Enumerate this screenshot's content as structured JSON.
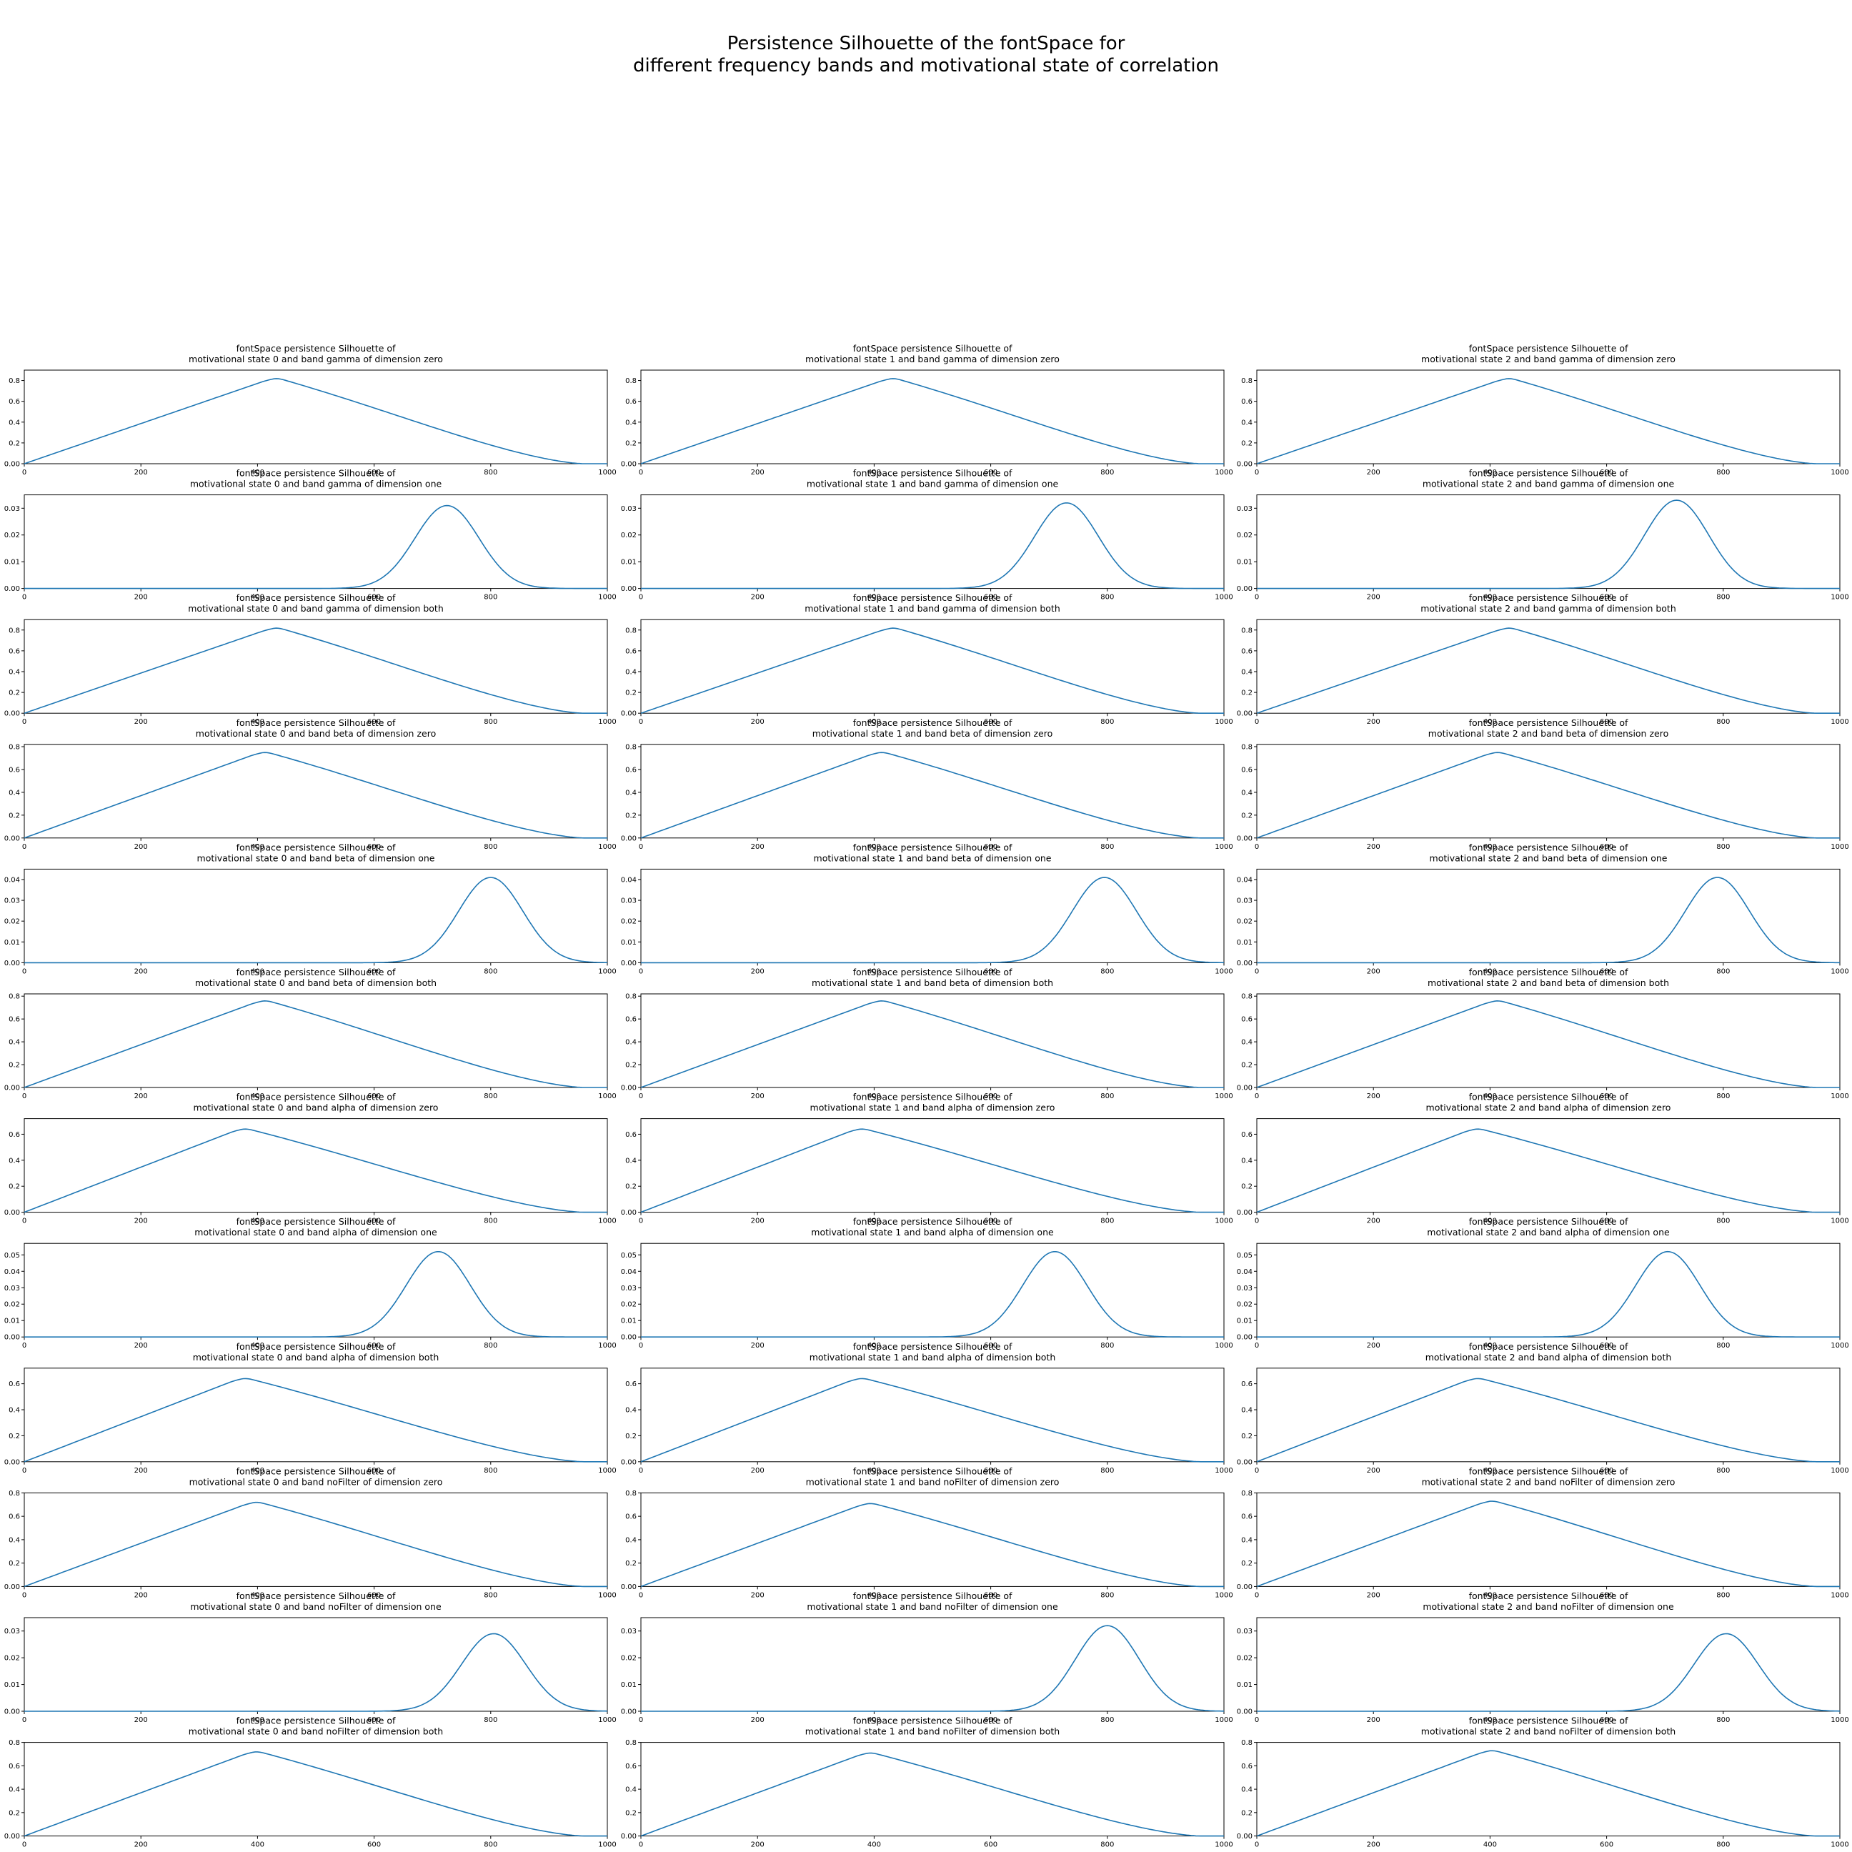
{
  "figure": {
    "suptitle": "Persistence Silhouette of the fontSpace for\ndifferent frequency bands and motivational state of correlation",
    "line_color": "#1f77b4"
  },
  "chart_data": [
    {
      "type": "line",
      "title": "fontSpace persistence Silhouette of\nmotivational state 0 and band gamma of dimension zero",
      "xlim": [
        0,
        1000
      ],
      "ylim": [
        0,
        0.9
      ],
      "xticks": [
        0,
        200,
        400,
        600,
        800,
        1000
      ],
      "yticks": [
        0.0,
        0.2,
        0.4,
        0.6,
        0.8
      ],
      "peak_x": 430,
      "peak_y": 0.83,
      "shape": "tent"
    },
    {
      "type": "line",
      "title": "fontSpace persistence Silhouette of\nmotivational state 1 and band gamma of dimension zero",
      "xlim": [
        0,
        1000
      ],
      "ylim": [
        0,
        0.9
      ],
      "xticks": [
        0,
        200,
        400,
        600,
        800,
        1000
      ],
      "yticks": [
        0.0,
        0.2,
        0.4,
        0.6,
        0.8
      ],
      "peak_x": 430,
      "peak_y": 0.83,
      "shape": "tent"
    },
    {
      "type": "line",
      "title": "fontSpace persistence Silhouette of\nmotivational state 2 and band gamma of dimension zero",
      "xlim": [
        0,
        1000
      ],
      "ylim": [
        0,
        0.9
      ],
      "xticks": [
        0,
        200,
        400,
        600,
        800,
        1000
      ],
      "yticks": [
        0.0,
        0.2,
        0.4,
        0.6,
        0.8
      ],
      "peak_x": 430,
      "peak_y": 0.83,
      "shape": "tent"
    },
    {
      "type": "line",
      "title": "fontSpace persistence Silhouette of\nmotivational state 0 and band gamma of dimension one",
      "xlim": [
        0,
        1000
      ],
      "ylim": [
        0,
        0.035
      ],
      "xticks": [
        0,
        200,
        400,
        600,
        800,
        1000
      ],
      "yticks": [
        0.0,
        0.01,
        0.02,
        0.03
      ],
      "peak_x": 725,
      "peak_y": 0.031,
      "shape": "bell"
    },
    {
      "type": "line",
      "title": "fontSpace persistence Silhouette of\nmotivational state 1 and band gamma of dimension one",
      "xlim": [
        0,
        1000
      ],
      "ylim": [
        0,
        0.035
      ],
      "xticks": [
        0,
        200,
        400,
        600,
        800,
        1000
      ],
      "yticks": [
        0.0,
        0.01,
        0.02,
        0.03
      ],
      "peak_x": 730,
      "peak_y": 0.032,
      "shape": "bell"
    },
    {
      "type": "line",
      "title": "fontSpace persistence Silhouette of\nmotivational state 2 and band gamma of dimension one",
      "xlim": [
        0,
        1000
      ],
      "ylim": [
        0,
        0.035
      ],
      "xticks": [
        0,
        200,
        400,
        600,
        800,
        1000
      ],
      "yticks": [
        0.0,
        0.01,
        0.02,
        0.03
      ],
      "peak_x": 720,
      "peak_y": 0.033,
      "shape": "bell"
    },
    {
      "type": "line",
      "title": "fontSpace persistence Silhouette of\nmotivational state 0 and band gamma of dimension both",
      "xlim": [
        0,
        1000
      ],
      "ylim": [
        0,
        0.9
      ],
      "xticks": [
        0,
        200,
        400,
        600,
        800,
        1000
      ],
      "yticks": [
        0.0,
        0.2,
        0.4,
        0.6,
        0.8
      ],
      "peak_x": 430,
      "peak_y": 0.83,
      "shape": "tent"
    },
    {
      "type": "line",
      "title": "fontSpace persistence Silhouette of\nmotivational state 1 and band gamma of dimension both",
      "xlim": [
        0,
        1000
      ],
      "ylim": [
        0,
        0.9
      ],
      "xticks": [
        0,
        200,
        400,
        600,
        800,
        1000
      ],
      "yticks": [
        0.0,
        0.2,
        0.4,
        0.6,
        0.8
      ],
      "peak_x": 430,
      "peak_y": 0.83,
      "shape": "tent"
    },
    {
      "type": "line",
      "title": "fontSpace persistence Silhouette of\nmotivational state 2 and band gamma of dimension both",
      "xlim": [
        0,
        1000
      ],
      "ylim": [
        0,
        0.9
      ],
      "xticks": [
        0,
        200,
        400,
        600,
        800,
        1000
      ],
      "yticks": [
        0.0,
        0.2,
        0.4,
        0.6,
        0.8
      ],
      "peak_x": 430,
      "peak_y": 0.83,
      "shape": "tent"
    },
    {
      "type": "line",
      "title": "fontSpace persistence Silhouette of\nmotivational state 0 and band beta of dimension zero",
      "xlim": [
        0,
        1000
      ],
      "ylim": [
        0,
        0.82
      ],
      "xticks": [
        0,
        200,
        400,
        600,
        800,
        1000
      ],
      "yticks": [
        0.0,
        0.2,
        0.4,
        0.6,
        0.8
      ],
      "peak_x": 410,
      "peak_y": 0.76,
      "shape": "tent"
    },
    {
      "type": "line",
      "title": "fontSpace persistence Silhouette of\nmotivational state 1 and band beta of dimension zero",
      "xlim": [
        0,
        1000
      ],
      "ylim": [
        0,
        0.82
      ],
      "xticks": [
        0,
        200,
        400,
        600,
        800,
        1000
      ],
      "yticks": [
        0.0,
        0.2,
        0.4,
        0.6,
        0.8
      ],
      "peak_x": 410,
      "peak_y": 0.76,
      "shape": "tent"
    },
    {
      "type": "line",
      "title": "fontSpace persistence Silhouette of\nmotivational state 2 and band beta of dimension zero",
      "xlim": [
        0,
        1000
      ],
      "ylim": [
        0,
        0.82
      ],
      "xticks": [
        0,
        200,
        400,
        600,
        800,
        1000
      ],
      "yticks": [
        0.0,
        0.2,
        0.4,
        0.6,
        0.8
      ],
      "peak_x": 410,
      "peak_y": 0.76,
      "shape": "tent"
    },
    {
      "type": "line",
      "title": "fontSpace persistence Silhouette of\nmotivational state 0 and band beta of dimension one",
      "xlim": [
        0,
        1000
      ],
      "ylim": [
        0,
        0.045
      ],
      "xticks": [
        0,
        200,
        400,
        600,
        800,
        1000
      ],
      "yticks": [
        0.0,
        0.01,
        0.02,
        0.03,
        0.04
      ],
      "peak_x": 800,
      "peak_y": 0.041,
      "shape": "bell"
    },
    {
      "type": "line",
      "title": "fontSpace persistence Silhouette of\nmotivational state 1 and band beta of dimension one",
      "xlim": [
        0,
        1000
      ],
      "ylim": [
        0,
        0.045
      ],
      "xticks": [
        0,
        200,
        400,
        600,
        800,
        1000
      ],
      "yticks": [
        0.0,
        0.01,
        0.02,
        0.03,
        0.04
      ],
      "peak_x": 795,
      "peak_y": 0.041,
      "shape": "bell"
    },
    {
      "type": "line",
      "title": "fontSpace persistence Silhouette of\nmotivational state 2 and band beta of dimension one",
      "xlim": [
        0,
        1000
      ],
      "ylim": [
        0,
        0.045
      ],
      "xticks": [
        0,
        200,
        400,
        600,
        800,
        1000
      ],
      "yticks": [
        0.0,
        0.01,
        0.02,
        0.03,
        0.04
      ],
      "peak_x": 790,
      "peak_y": 0.041,
      "shape": "bell"
    },
    {
      "type": "line",
      "title": "fontSpace persistence Silhouette of\nmotivational state 0 and band beta of dimension both",
      "xlim": [
        0,
        1000
      ],
      "ylim": [
        0,
        0.82
      ],
      "xticks": [
        0,
        200,
        400,
        600,
        800,
        1000
      ],
      "yticks": [
        0.0,
        0.2,
        0.4,
        0.6,
        0.8
      ],
      "peak_x": 410,
      "peak_y": 0.77,
      "shape": "tent"
    },
    {
      "type": "line",
      "title": "fontSpace persistence Silhouette of\nmotivational state 1 and band beta of dimension both",
      "xlim": [
        0,
        1000
      ],
      "ylim": [
        0,
        0.82
      ],
      "xticks": [
        0,
        200,
        400,
        600,
        800,
        1000
      ],
      "yticks": [
        0.0,
        0.2,
        0.4,
        0.6,
        0.8
      ],
      "peak_x": 410,
      "peak_y": 0.77,
      "shape": "tent"
    },
    {
      "type": "line",
      "title": "fontSpace persistence Silhouette of\nmotivational state 2 and band beta of dimension both",
      "xlim": [
        0,
        1000
      ],
      "ylim": [
        0,
        0.82
      ],
      "xticks": [
        0,
        200,
        400,
        600,
        800,
        1000
      ],
      "yticks": [
        0.0,
        0.2,
        0.4,
        0.6,
        0.8
      ],
      "peak_x": 410,
      "peak_y": 0.77,
      "shape": "tent"
    },
    {
      "type": "line",
      "title": "fontSpace persistence Silhouette of\nmotivational state 0 and band alpha of dimension zero",
      "xlim": [
        0,
        1000
      ],
      "ylim": [
        0,
        0.72
      ],
      "xticks": [
        0,
        200,
        400,
        600,
        800,
        1000
      ],
      "yticks": [
        0.0,
        0.2,
        0.4,
        0.6
      ],
      "peak_x": 375,
      "peak_y": 0.65,
      "shape": "tent"
    },
    {
      "type": "line",
      "title": "fontSpace persistence Silhouette of\nmotivational state 1 and band alpha of dimension zero",
      "xlim": [
        0,
        1000
      ],
      "ylim": [
        0,
        0.72
      ],
      "xticks": [
        0,
        200,
        400,
        600,
        800,
        1000
      ],
      "yticks": [
        0.0,
        0.2,
        0.4,
        0.6
      ],
      "peak_x": 375,
      "peak_y": 0.65,
      "shape": "tent"
    },
    {
      "type": "line",
      "title": "fontSpace persistence Silhouette of\nmotivational state 2 and band alpha of dimension zero",
      "xlim": [
        0,
        1000
      ],
      "ylim": [
        0,
        0.72
      ],
      "xticks": [
        0,
        200,
        400,
        600,
        800,
        1000
      ],
      "yticks": [
        0.0,
        0.2,
        0.4,
        0.6
      ],
      "peak_x": 375,
      "peak_y": 0.65,
      "shape": "tent"
    },
    {
      "type": "line",
      "title": "fontSpace persistence Silhouette of\nmotivational state 0 and band alpha of dimension one",
      "xlim": [
        0,
        1000
      ],
      "ylim": [
        0,
        0.057
      ],
      "xticks": [
        0,
        200,
        400,
        600,
        800,
        1000
      ],
      "yticks": [
        0.0,
        0.01,
        0.02,
        0.03,
        0.04,
        0.05
      ],
      "peak_x": 710,
      "peak_y": 0.052,
      "shape": "bell"
    },
    {
      "type": "line",
      "title": "fontSpace persistence Silhouette of\nmotivational state 1 and band alpha of dimension one",
      "xlim": [
        0,
        1000
      ],
      "ylim": [
        0,
        0.057
      ],
      "xticks": [
        0,
        200,
        400,
        600,
        800,
        1000
      ],
      "yticks": [
        0.0,
        0.01,
        0.02,
        0.03,
        0.04,
        0.05
      ],
      "peak_x": 710,
      "peak_y": 0.052,
      "shape": "bell"
    },
    {
      "type": "line",
      "title": "fontSpace persistence Silhouette of\nmotivational state 2 and band alpha of dimension one",
      "xlim": [
        0,
        1000
      ],
      "ylim": [
        0,
        0.057
      ],
      "xticks": [
        0,
        200,
        400,
        600,
        800,
        1000
      ],
      "yticks": [
        0.0,
        0.01,
        0.02,
        0.03,
        0.04,
        0.05
      ],
      "peak_x": 705,
      "peak_y": 0.052,
      "shape": "bell"
    },
    {
      "type": "line",
      "title": "fontSpace persistence Silhouette of\nmotivational state 0 and band alpha of dimension both",
      "xlim": [
        0,
        1000
      ],
      "ylim": [
        0,
        0.72
      ],
      "xticks": [
        0,
        200,
        400,
        600,
        800,
        1000
      ],
      "yticks": [
        0.0,
        0.2,
        0.4,
        0.6
      ],
      "peak_x": 375,
      "peak_y": 0.65,
      "shape": "tent"
    },
    {
      "type": "line",
      "title": "fontSpace persistence Silhouette of\nmotivational state 1 and band alpha of dimension both",
      "xlim": [
        0,
        1000
      ],
      "ylim": [
        0,
        0.72
      ],
      "xticks": [
        0,
        200,
        400,
        600,
        800,
        1000
      ],
      "yticks": [
        0.0,
        0.2,
        0.4,
        0.6
      ],
      "peak_x": 375,
      "peak_y": 0.65,
      "shape": "tent"
    },
    {
      "type": "line",
      "title": "fontSpace persistence Silhouette of\nmotivational state 2 and band alpha of dimension both",
      "xlim": [
        0,
        1000
      ],
      "ylim": [
        0,
        0.72
      ],
      "xticks": [
        0,
        200,
        400,
        600,
        800,
        1000
      ],
      "yticks": [
        0.0,
        0.2,
        0.4,
        0.6
      ],
      "peak_x": 375,
      "peak_y": 0.65,
      "shape": "tent"
    },
    {
      "type": "line",
      "title": "fontSpace persistence Silhouette of\nmotivational state 0 and band noFilter of dimension zero",
      "xlim": [
        0,
        1000
      ],
      "ylim": [
        0,
        0.8
      ],
      "xticks": [
        0,
        200,
        400,
        600,
        800,
        1000
      ],
      "yticks": [
        0.0,
        0.2,
        0.4,
        0.6,
        0.8
      ],
      "peak_x": 395,
      "peak_y": 0.73,
      "shape": "tent"
    },
    {
      "type": "line",
      "title": "fontSpace persistence Silhouette of\nmotivational state 1 and band noFilter of dimension zero",
      "xlim": [
        0,
        1000
      ],
      "ylim": [
        0,
        0.8
      ],
      "xticks": [
        0,
        200,
        400,
        600,
        800,
        1000
      ],
      "yticks": [
        0.0,
        0.2,
        0.4,
        0.6,
        0.8
      ],
      "peak_x": 390,
      "peak_y": 0.72,
      "shape": "tent"
    },
    {
      "type": "line",
      "title": "fontSpace persistence Silhouette of\nmotivational state 2 and band noFilter of dimension zero",
      "xlim": [
        0,
        1000
      ],
      "ylim": [
        0,
        0.8
      ],
      "xticks": [
        0,
        200,
        400,
        600,
        800,
        1000
      ],
      "yticks": [
        0.0,
        0.2,
        0.4,
        0.6,
        0.8
      ],
      "peak_x": 400,
      "peak_y": 0.74,
      "shape": "tent"
    },
    {
      "type": "line",
      "title": "fontSpace persistence Silhouette of\nmotivational state 0 and band noFilter of dimension one",
      "xlim": [
        0,
        1000
      ],
      "ylim": [
        0,
        0.035
      ],
      "xticks": [
        0,
        200,
        400,
        600,
        800,
        1000
      ],
      "yticks": [
        0.0,
        0.01,
        0.02,
        0.03
      ],
      "peak_x": 805,
      "peak_y": 0.029,
      "shape": "bell"
    },
    {
      "type": "line",
      "title": "fontSpace persistence Silhouette of\nmotivational state 1 and band noFilter of dimension one",
      "xlim": [
        0,
        1000
      ],
      "ylim": [
        0,
        0.035
      ],
      "xticks": [
        0,
        200,
        400,
        600,
        800,
        1000
      ],
      "yticks": [
        0.0,
        0.01,
        0.02,
        0.03
      ],
      "peak_x": 800,
      "peak_y": 0.032,
      "shape": "bell"
    },
    {
      "type": "line",
      "title": "fontSpace persistence Silhouette of\nmotivational state 2 and band noFilter of dimension one",
      "xlim": [
        0,
        1000
      ],
      "ylim": [
        0,
        0.035
      ],
      "xticks": [
        0,
        200,
        400,
        600,
        800,
        1000
      ],
      "yticks": [
        0.0,
        0.01,
        0.02,
        0.03
      ],
      "peak_x": 805,
      "peak_y": 0.029,
      "shape": "bell"
    },
    {
      "type": "line",
      "title": "fontSpace persistence Silhouette of\nmotivational state 0 and band noFilter of dimension both",
      "xlim": [
        0,
        1000
      ],
      "ylim": [
        0,
        0.8
      ],
      "xticks": [
        0,
        200,
        400,
        600,
        800,
        1000
      ],
      "yticks": [
        0.0,
        0.2,
        0.4,
        0.6,
        0.8
      ],
      "peak_x": 395,
      "peak_y": 0.73,
      "shape": "tent"
    },
    {
      "type": "line",
      "title": "fontSpace persistence Silhouette of\nmotivational state 1 and band noFilter of dimension both",
      "xlim": [
        0,
        1000
      ],
      "ylim": [
        0,
        0.8
      ],
      "xticks": [
        0,
        200,
        400,
        600,
        800,
        1000
      ],
      "yticks": [
        0.0,
        0.2,
        0.4,
        0.6,
        0.8
      ],
      "peak_x": 390,
      "peak_y": 0.72,
      "shape": "tent"
    },
    {
      "type": "line",
      "title": "fontSpace persistence Silhouette of\nmotivational state 2 and band noFilter of dimension both",
      "xlim": [
        0,
        1000
      ],
      "ylim": [
        0,
        0.8
      ],
      "xticks": [
        0,
        200,
        400,
        600,
        800,
        1000
      ],
      "yticks": [
        0.0,
        0.2,
        0.4,
        0.6,
        0.8
      ],
      "peak_x": 400,
      "peak_y": 0.74,
      "shape": "tent"
    }
  ]
}
